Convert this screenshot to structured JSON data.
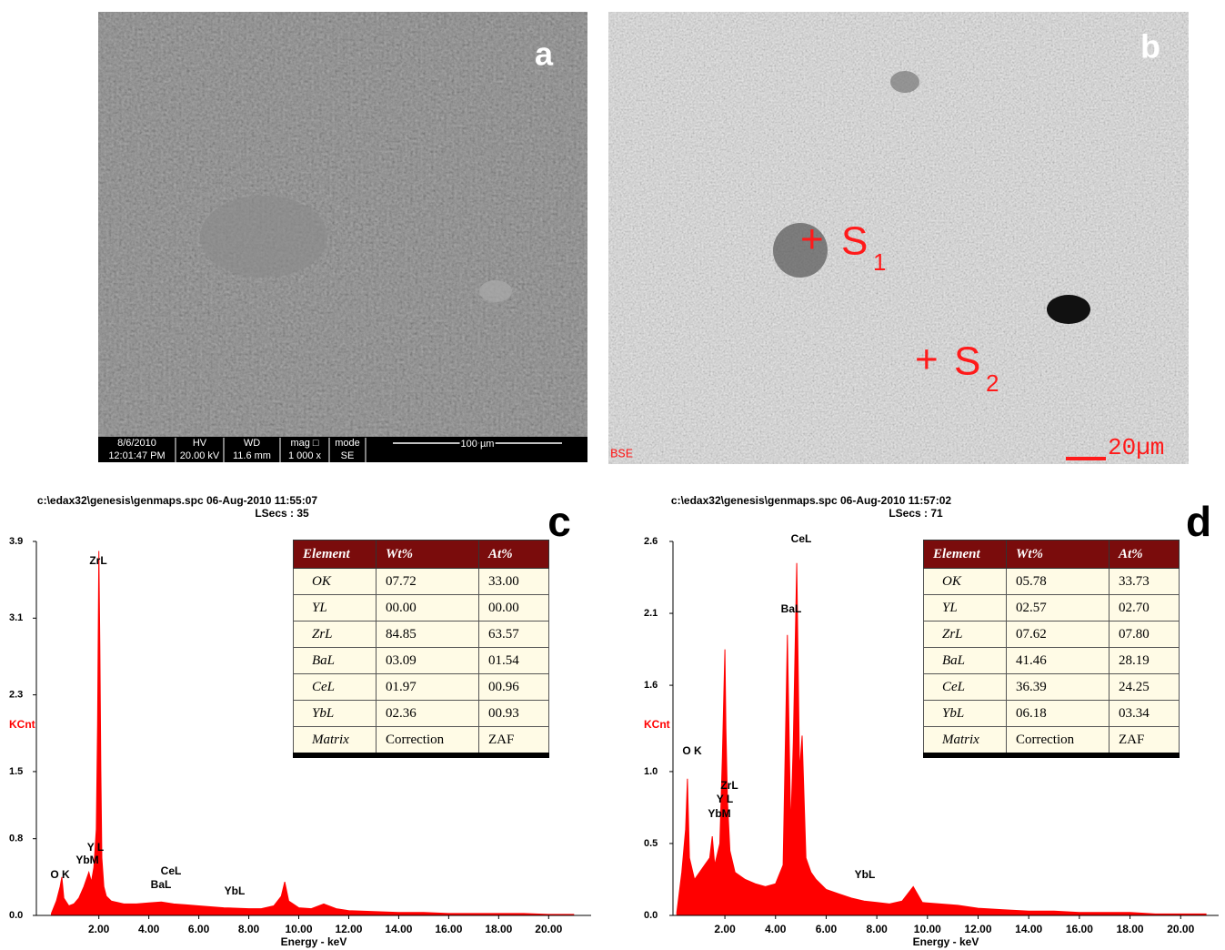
{
  "images": [
    {
      "label": "a",
      "info": [
        [
          "8/6/2010",
          "12:01:47 PM"
        ],
        [
          "HV",
          "20.00 kV"
        ],
        [
          "WD",
          "11.6 mm"
        ],
        [
          "mag □",
          "1 000 x"
        ],
        [
          "mode",
          "SE"
        ]
      ],
      "scale": "100 µm"
    },
    {
      "label": "b",
      "markers": [
        {
          "symbol": "+",
          "label": "S",
          "subscript": "1"
        },
        {
          "symbol": "+",
          "label": "S",
          "subscript": "2"
        }
      ],
      "mode": "BSE",
      "scale": "20µm"
    }
  ],
  "chart_data": [
    {
      "type": "area",
      "label": "c",
      "header": "c:\\edax32\\genesis\\genmaps.spc  06-Aug-2010 11:55:07",
      "subheader": "LSecs :  35",
      "ylabel": "KCnt",
      "xlabel": "Energy - keV",
      "color": "#ff0000",
      "x": [
        0.1,
        0.3,
        0.45,
        0.52,
        0.6,
        0.8,
        1.0,
        1.2,
        1.4,
        1.6,
        1.7,
        1.8,
        1.9,
        1.95,
        2.0,
        2.04,
        2.08,
        2.12,
        2.2,
        2.3,
        2.5,
        3.0,
        3.5,
        4.0,
        4.5,
        5.0,
        5.5,
        6.0,
        7.0,
        8.0,
        8.5,
        9.0,
        9.3,
        9.44,
        9.6,
        10.0,
        10.5,
        11.0,
        11.5,
        12.0,
        13,
        14,
        15,
        16,
        17,
        18,
        19,
        20,
        21
      ],
      "values": [
        0.02,
        0.15,
        0.3,
        0.4,
        0.18,
        0.1,
        0.12,
        0.18,
        0.3,
        0.45,
        0.35,
        0.5,
        0.9,
        2.0,
        3.8,
        2.8,
        1.5,
        0.6,
        0.3,
        0.2,
        0.15,
        0.12,
        0.12,
        0.13,
        0.14,
        0.12,
        0.11,
        0.1,
        0.08,
        0.07,
        0.07,
        0.1,
        0.2,
        0.35,
        0.15,
        0.08,
        0.07,
        0.12,
        0.07,
        0.05,
        0.04,
        0.03,
        0.03,
        0.02,
        0.02,
        0.02,
        0.02,
        0.01,
        0.01
      ],
      "xlim": [
        -0.5,
        21.7
      ],
      "ylim": [
        0,
        3.9
      ],
      "xticks": [
        {
          "value": 2,
          "label": "2.00"
        },
        {
          "value": 4,
          "label": "4.00"
        },
        {
          "value": 6,
          "label": "6.00"
        },
        {
          "value": 8,
          "label": "8.00"
        },
        {
          "value": 10,
          "label": "10.00"
        },
        {
          "value": 12,
          "label": "12.00"
        },
        {
          "value": 14,
          "label": "14.00"
        },
        {
          "value": 16,
          "label": "16.00"
        },
        {
          "value": 18,
          "label": "18.00"
        },
        {
          "value": 20,
          "label": "20.00"
        }
      ],
      "yticks": [
        {
          "value": 0,
          "label": "0.0"
        },
        0.8,
        1.5,
        2.3,
        3.1,
        3.9
      ],
      "annotations": [
        "ZrL",
        "Y L",
        "YbM",
        "O K",
        "CeL",
        "BaL",
        "YbL"
      ],
      "table": {
        "columns": [
          "Element",
          "Wt%",
          "At%"
        ],
        "rows": [
          [
            "OK",
            "07.72",
            "33.00"
          ],
          [
            "YL",
            "00.00",
            "00.00"
          ],
          [
            "ZrL",
            "84.85",
            "63.57"
          ],
          [
            "BaL",
            "03.09",
            "01.54"
          ],
          [
            "CeL",
            "01.97",
            "00.96"
          ],
          [
            "YbL",
            "02.36",
            "00.93"
          ],
          [
            "Matrix",
            "Correction",
            "ZAF"
          ]
        ]
      }
    },
    {
      "type": "area",
      "label": "d",
      "header": "c:\\edax32\\genesis\\genmaps.spc  06-Aug-2010 11:57:02",
      "subheader": "LSecs :  71",
      "ylabel": "KCnt",
      "xlabel": "Energy - keV",
      "color": "#ff0000",
      "x": [
        0.1,
        0.3,
        0.45,
        0.52,
        0.6,
        0.8,
        1.0,
        1.2,
        1.4,
        1.5,
        1.6,
        1.8,
        1.9,
        2.0,
        2.04,
        2.1,
        2.2,
        2.4,
        2.8,
        3.2,
        3.6,
        4.0,
        4.3,
        4.47,
        4.6,
        4.7,
        4.84,
        4.95,
        5.05,
        5.2,
        5.4,
        5.6,
        6.0,
        6.5,
        7.0,
        7.5,
        8.0,
        8.5,
        9.0,
        9.44,
        9.8,
        10.5,
        11.2,
        12,
        13,
        14,
        15,
        16,
        17,
        18,
        19,
        20,
        21
      ],
      "values": [
        0.02,
        0.3,
        0.6,
        0.95,
        0.4,
        0.25,
        0.3,
        0.35,
        0.4,
        0.55,
        0.35,
        0.5,
        1.1,
        1.85,
        1.3,
        0.8,
        0.45,
        0.3,
        0.25,
        0.22,
        0.2,
        0.22,
        0.35,
        1.95,
        0.6,
        1.2,
        2.45,
        1.0,
        1.25,
        0.4,
        0.3,
        0.25,
        0.18,
        0.15,
        0.12,
        0.1,
        0.09,
        0.08,
        0.1,
        0.2,
        0.09,
        0.08,
        0.07,
        0.05,
        0.04,
        0.03,
        0.03,
        0.02,
        0.02,
        0.02,
        0.01,
        0.01,
        0.01
      ],
      "xlim": [
        -0.05,
        21.5
      ],
      "ylim": [
        0,
        2.6
      ],
      "xticks": [
        {
          "value": 2,
          "label": "2.00"
        },
        {
          "value": 4,
          "label": "4.00"
        },
        {
          "value": 6,
          "label": "6.00"
        },
        {
          "value": 8,
          "label": "8.00"
        },
        {
          "value": 10,
          "label": "10.00"
        },
        {
          "value": 12,
          "label": "12.00"
        },
        {
          "value": 14,
          "label": "14.00"
        },
        {
          "value": 16,
          "label": "16.00"
        },
        {
          "value": 18,
          "label": "18.00"
        },
        {
          "value": 20,
          "label": "20.00"
        }
      ],
      "yticks": [
        {
          "value": 0,
          "label": "0.0"
        },
        0.5,
        {
          "value": 1,
          "label": "1.0"
        },
        1.6,
        2.1,
        2.6
      ],
      "annotations": [
        "CeL",
        "BaL",
        "O K",
        "ZrL",
        "Y L",
        "YbM",
        "YbL"
      ],
      "table": {
        "columns": [
          "Element",
          "Wt%",
          "At%"
        ],
        "rows": [
          [
            "OK",
            "05.78",
            "33.73"
          ],
          [
            "YL",
            "02.57",
            "02.70"
          ],
          [
            "ZrL",
            "07.62",
            "07.80"
          ],
          [
            "BaL",
            "41.46",
            "28.19"
          ],
          [
            "CeL",
            "36.39",
            "24.25"
          ],
          [
            "YbL",
            "06.18",
            "03.34"
          ],
          [
            "Matrix",
            "Correction",
            "ZAF"
          ]
        ]
      }
    }
  ]
}
